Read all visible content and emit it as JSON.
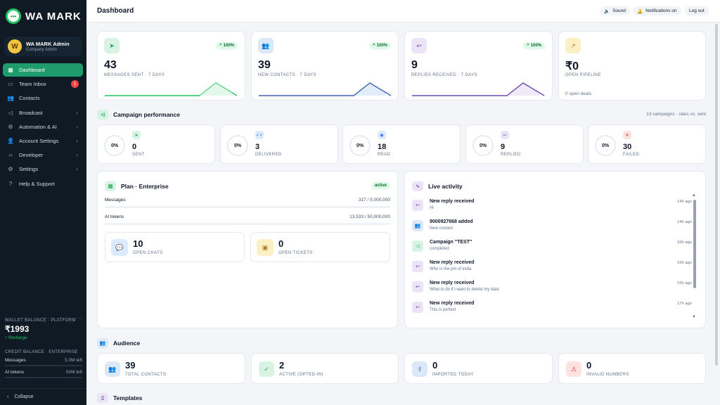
{
  "brand": {
    "name": "WA MARK",
    "logo_glyph": "•••"
  },
  "user": {
    "initial": "W",
    "name": "WA MARK Admin",
    "role": "Company Admin"
  },
  "nav": [
    {
      "label": "Dashboard",
      "icon": "grid-icon",
      "active": true
    },
    {
      "label": "Team Inbox",
      "icon": "inbox-icon",
      "badge": "1"
    },
    {
      "label": "Contacts",
      "icon": "users-icon"
    },
    {
      "label": "Broadcast",
      "icon": "megaphone-icon",
      "chevron": true
    },
    {
      "label": "Automation & AI",
      "icon": "bolt-icon",
      "chevron": true
    },
    {
      "label": "Account Settings",
      "icon": "user-icon",
      "chevron": true
    },
    {
      "label": "Developer",
      "icon": "code-icon",
      "chevron": true
    },
    {
      "label": "Settings",
      "icon": "gear-icon",
      "chevron": true
    },
    {
      "label": "Help & Support",
      "icon": "help-icon"
    }
  ],
  "wallet": {
    "label": "WALLET BALANCE · PLATFORM",
    "amount": "₹1993",
    "recharge": "+ Recharge"
  },
  "credit": {
    "label": "CREDIT BALANCE · ENTERPRISE",
    "rows": [
      {
        "name": "Messages",
        "value": "5.0M left"
      },
      {
        "name": "AI tokens",
        "value": "50M left"
      }
    ]
  },
  "collapse_label": "Collapse",
  "topbar": {
    "title": "Dashboard",
    "sound": "Sound",
    "notifications": "Notifications on",
    "logout": "Log out"
  },
  "kpis": [
    {
      "value": "43",
      "label": "MESSAGES SENT · 7 DAYS",
      "badge": "100%",
      "color": "#22c55e",
      "icon_bg": "#d8f3e3"
    },
    {
      "value": "39",
      "label": "NEW CONTACTS · 7 DAYS",
      "badge": "100%",
      "color": "#3b63b8",
      "icon_bg": "#dce7f8"
    },
    {
      "value": "9",
      "label": "REPLIES RECEIVED · 7 DAYS",
      "badge": "100%",
      "color": "#6d4ab0",
      "icon_bg": "#ebe3f6"
    },
    {
      "value": "₹0",
      "label": "OPEN PIPELINE",
      "foot": "0 open deals",
      "icon_bg": "#fbf0c4"
    }
  ],
  "campaign": {
    "title": "Campaign performance",
    "note": "13 campaigns · rates vs. sent",
    "items": [
      {
        "pct": "0%",
        "value": "0",
        "label": "SENT",
        "icon_bg": "#d8f3e3",
        "icon_color": "#16a34a",
        "glyph": "➤",
        "icon": "send-icon"
      },
      {
        "pct": "0%",
        "value": "3",
        "label": "DELIVERED",
        "icon_bg": "#dbeafe",
        "icon_color": "#2563eb",
        "glyph": "✓✓",
        "icon": "double-check-icon"
      },
      {
        "pct": "0%",
        "value": "18",
        "label": "READ",
        "icon_bg": "#dbeafe",
        "icon_color": "#2563eb",
        "glyph": "◉",
        "icon": "eye-icon"
      },
      {
        "pct": "0%",
        "value": "9",
        "label": "REPLIED",
        "icon_bg": "#ebe3f6",
        "icon_color": "#6d4ab0",
        "glyph": "↩",
        "icon": "reply-icon"
      },
      {
        "pct": "0%",
        "value": "30",
        "label": "FAILED",
        "icon_bg": "#fde2e2",
        "icon_color": "#dc2626",
        "glyph": "✕",
        "icon": "x-icon"
      }
    ]
  },
  "plan": {
    "title": "Plan · Enterprise",
    "status": "active",
    "rows": [
      {
        "name": "Messages",
        "value": "317 / 5,000,000",
        "fraction": 0.0001
      },
      {
        "name": "AI tokens",
        "value": "13,533 / 50,000,000",
        "fraction": 0.0003
      }
    ],
    "open_chats": {
      "value": "10",
      "label": "OPEN CHATS"
    },
    "open_tickets": {
      "value": "0",
      "label": "OPEN TICKETS"
    }
  },
  "activity": {
    "title": "Live activity",
    "items": [
      {
        "title": "New reply received",
        "sub": "Hi",
        "time": "14h ago",
        "icon": "reply-icon",
        "glyph": "↩",
        "bg": "#ebe3f6",
        "fg": "#6d4ab0"
      },
      {
        "title": "9000927668 added",
        "sub": "New contact",
        "time": "14h ago",
        "icon": "users-icon",
        "glyph": "👥",
        "bg": "#dce7f8",
        "fg": "#3b63b8"
      },
      {
        "title": "Campaign \"TEST\"",
        "sub": "completed",
        "time": "16h ago",
        "icon": "megaphone-icon",
        "glyph": "📣",
        "bg": "#d8f3e3",
        "fg": "#16a34a"
      },
      {
        "title": "New reply received",
        "sub": "Who is the pm of india",
        "time": "16h ago",
        "icon": "reply-icon",
        "glyph": "↩",
        "bg": "#ebe3f6",
        "fg": "#6d4ab0"
      },
      {
        "title": "New reply received",
        "sub": "What to do if i want to delete my data",
        "time": "16h ago",
        "icon": "reply-icon",
        "glyph": "↩",
        "bg": "#ebe3f6",
        "fg": "#6d4ab0"
      },
      {
        "title": "New reply received",
        "sub": "This is perfect",
        "time": "17h ago",
        "icon": "reply-icon",
        "glyph": "↩",
        "bg": "#ebe3f6",
        "fg": "#6d4ab0"
      }
    ]
  },
  "audience": {
    "title": "Audience",
    "items": [
      {
        "value": "39",
        "label": "TOTAL CONTACTS",
        "bg": "#dce7f8",
        "fg": "#3b63b8",
        "icon": "users-icon"
      },
      {
        "value": "2",
        "label": "ACTIVE (OPTED-IN)",
        "bg": "#d8f3e3",
        "fg": "#16a34a",
        "icon": "user-check-icon"
      },
      {
        "value": "0",
        "label": "IMPORTED TODAY",
        "bg": "#dce7f8",
        "fg": "#3b63b8",
        "icon": "upload-icon"
      },
      {
        "value": "0",
        "label": "INVALID NUMBERS",
        "bg": "#fde2e2",
        "fg": "#dc2626",
        "icon": "warning-icon"
      }
    ]
  },
  "templates": {
    "title": "Templates"
  }
}
